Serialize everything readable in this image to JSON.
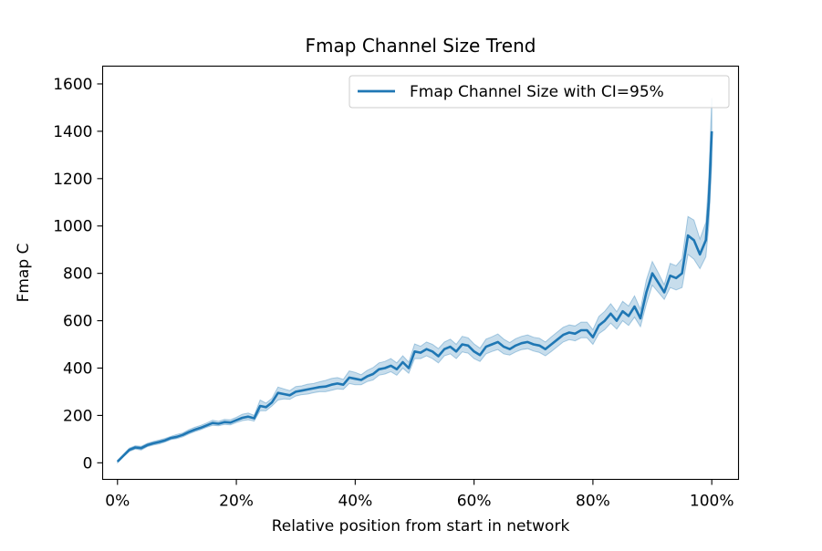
{
  "chart_data": {
    "type": "line",
    "title": "Fmap Channel Size Trend",
    "xlabel": "Relative position from start in network",
    "ylabel": "Fmap C",
    "xlim": [
      -0.025,
      1.045
    ],
    "ylim": [
      -70,
      1675
    ],
    "x_ticks": [
      0,
      0.2,
      0.4,
      0.6,
      0.8,
      1.0
    ],
    "x_tick_labels": [
      "0%",
      "20%",
      "40%",
      "60%",
      "80%",
      "100%"
    ],
    "y_ticks": [
      0,
      200,
      400,
      600,
      800,
      1000,
      1200,
      1400,
      1600
    ],
    "y_tick_labels": [
      "0",
      "200",
      "400",
      "600",
      "800",
      "1000",
      "1200",
      "1400",
      "1600"
    ],
    "grid": false,
    "legend": {
      "position": "top-right",
      "entries": [
        "Fmap Channel Size with CI=95%"
      ]
    },
    "colors": {
      "line": "#1f77b4",
      "band": "#1f77b4"
    },
    "series": [
      {
        "name": "Fmap Channel Size with CI=95%",
        "x": [
          0,
          0.01,
          0.02,
          0.03,
          0.04,
          0.05,
          0.06,
          0.07,
          0.08,
          0.09,
          0.1,
          0.11,
          0.12,
          0.13,
          0.14,
          0.15,
          0.16,
          0.17,
          0.18,
          0.19,
          0.2,
          0.21,
          0.22,
          0.23,
          0.24,
          0.25,
          0.26,
          0.27,
          0.28,
          0.29,
          0.3,
          0.31,
          0.32,
          0.33,
          0.34,
          0.35,
          0.36,
          0.37,
          0.38,
          0.39,
          0.4,
          0.41,
          0.42,
          0.43,
          0.44,
          0.45,
          0.46,
          0.47,
          0.48,
          0.49,
          0.5,
          0.51,
          0.52,
          0.53,
          0.54,
          0.55,
          0.56,
          0.57,
          0.58,
          0.59,
          0.6,
          0.61,
          0.62,
          0.63,
          0.64,
          0.65,
          0.66,
          0.67,
          0.68,
          0.69,
          0.7,
          0.71,
          0.72,
          0.73,
          0.74,
          0.75,
          0.76,
          0.77,
          0.78,
          0.79,
          0.8,
          0.81,
          0.82,
          0.83,
          0.84,
          0.85,
          0.86,
          0.87,
          0.88,
          0.89,
          0.9,
          0.91,
          0.92,
          0.93,
          0.94,
          0.95,
          0.96,
          0.97,
          0.98,
          0.99,
          0.995,
          1.0
        ],
        "y": [
          5,
          30,
          55,
          65,
          62,
          75,
          82,
          88,
          95,
          105,
          110,
          118,
          130,
          140,
          148,
          158,
          168,
          165,
          172,
          170,
          180,
          190,
          195,
          188,
          240,
          235,
          255,
          295,
          290,
          285,
          300,
          305,
          310,
          315,
          320,
          322,
          330,
          335,
          330,
          360,
          355,
          350,
          365,
          375,
          395,
          400,
          410,
          395,
          425,
          400,
          470,
          465,
          480,
          470,
          450,
          480,
          490,
          470,
          500,
          495,
          470,
          455,
          490,
          500,
          510,
          490,
          480,
          495,
          505,
          510,
          500,
          495,
          480,
          500,
          520,
          540,
          550,
          545,
          560,
          560,
          530,
          580,
          600,
          630,
          600,
          640,
          620,
          660,
          610,
          720,
          800,
          760,
          720,
          790,
          780,
          800,
          960,
          940,
          880,
          940,
          1100,
          1400
        ],
        "ci_low": [
          0,
          25,
          48,
          58,
          54,
          68,
          75,
          80,
          88,
          98,
          102,
          110,
          122,
          132,
          140,
          150,
          158,
          156,
          162,
          160,
          170,
          178,
          182,
          176,
          220,
          220,
          240,
          265,
          270,
          268,
          282,
          288,
          290,
          296,
          300,
          300,
          306,
          312,
          310,
          335,
          330,
          330,
          343,
          350,
          370,
          375,
          385,
          370,
          400,
          378,
          440,
          440,
          452,
          440,
          422,
          452,
          460,
          440,
          468,
          463,
          440,
          428,
          460,
          470,
          478,
          460,
          455,
          468,
          478,
          482,
          472,
          466,
          452,
          470,
          490,
          510,
          520,
          515,
          528,
          528,
          500,
          545,
          563,
          590,
          565,
          600,
          580,
          615,
          575,
          670,
          750,
          720,
          690,
          740,
          730,
          740,
          880,
          860,
          820,
          870,
          1000,
          1260
        ],
        "ci_high": [
          10,
          36,
          62,
          72,
          70,
          82,
          90,
          96,
          103,
          112,
          120,
          126,
          140,
          150,
          158,
          168,
          180,
          175,
          183,
          182,
          192,
          205,
          210,
          200,
          265,
          252,
          272,
          320,
          312,
          305,
          322,
          325,
          332,
          335,
          342,
          348,
          356,
          360,
          352,
          388,
          382,
          372,
          390,
          402,
          422,
          428,
          440,
          422,
          452,
          425,
          502,
          492,
          510,
          500,
          482,
          510,
          522,
          500,
          534,
          528,
          502,
          484,
          522,
          532,
          544,
          522,
          508,
          524,
          534,
          540,
          530,
          526,
          510,
          532,
          552,
          572,
          582,
          578,
          594,
          594,
          562,
          618,
          640,
          672,
          638,
          682,
          662,
          705,
          648,
          772,
          850,
          802,
          752,
          842,
          832,
          862,
          1040,
          1025,
          945,
          1015,
          1205,
          1540
        ]
      }
    ]
  }
}
